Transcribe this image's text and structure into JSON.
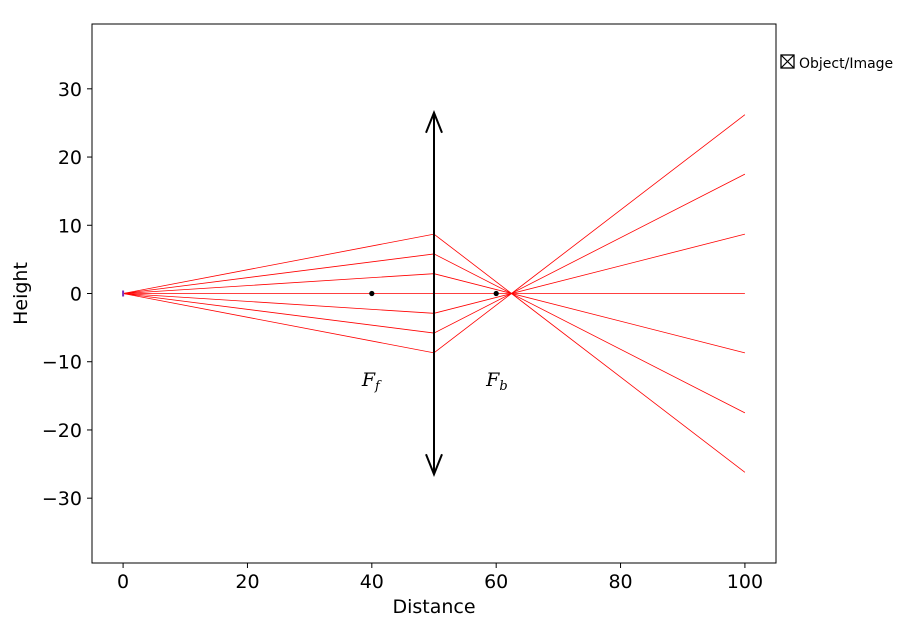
{
  "chart_data": {
    "type": "line",
    "xlabel": "Distance",
    "ylabel": "Height",
    "xlim": [
      -5,
      105
    ],
    "ylim": [
      -39.5,
      39.5
    ],
    "xticks": [
      0,
      20,
      40,
      60,
      80,
      100
    ],
    "yticks": [
      -30,
      -20,
      -10,
      0,
      10,
      20,
      30
    ],
    "grid": false,
    "legend": {
      "entries": [
        "Object/Image"
      ],
      "placement": "outside-right-top"
    },
    "lens": {
      "x": 50,
      "half_height": 26.5,
      "color": "#000000"
    },
    "focal_points": [
      {
        "x": 40,
        "y": 0,
        "label": "F",
        "subscript": "f",
        "label_y": -12.5
      },
      {
        "x": 60,
        "y": 0,
        "label": "F",
        "subscript": "b",
        "label_y": -12.5
      }
    ],
    "object": {
      "x": 0,
      "y": 0,
      "color": "#7b2fbe"
    },
    "ray_color": "#ff0000",
    "rays": [
      {
        "x": [
          0,
          50,
          100
        ],
        "y": [
          0,
          8.7,
          -26.2
        ]
      },
      {
        "x": [
          0,
          50,
          100
        ],
        "y": [
          0,
          5.8,
          -17.5
        ]
      },
      {
        "x": [
          0,
          50,
          100
        ],
        "y": [
          0,
          2.9,
          -8.7
        ]
      },
      {
        "x": [
          0,
          50,
          100
        ],
        "y": [
          0,
          0,
          0
        ]
      },
      {
        "x": [
          0,
          50,
          100
        ],
        "y": [
          0,
          -2.9,
          8.7
        ]
      },
      {
        "x": [
          0,
          50,
          100
        ],
        "y": [
          0,
          -5.8,
          17.5
        ]
      },
      {
        "x": [
          0,
          50,
          100
        ],
        "y": [
          0,
          -8.7,
          26.2
        ]
      }
    ]
  }
}
